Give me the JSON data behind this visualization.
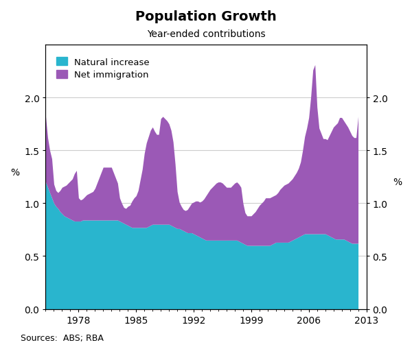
{
  "title": "Population Growth",
  "subtitle": "Year-ended contributions",
  "source": "Sources:  ABS; RBA",
  "ylabel_left": "%",
  "ylabel_right": "%",
  "ylim": [
    0.0,
    2.5
  ],
  "yticks": [
    0.0,
    0.5,
    1.0,
    1.5,
    2.0
  ],
  "xtick_years": [
    1978,
    1985,
    1992,
    1999,
    2006,
    2013
  ],
  "color_natural": "#29B5CE",
  "color_immigration": "#9B59B6",
  "legend_labels": [
    "Natural increase",
    "Net immigration"
  ],
  "years": [
    1974.0,
    1974.25,
    1974.5,
    1974.75,
    1975.0,
    1975.25,
    1975.5,
    1975.75,
    1976.0,
    1976.25,
    1976.5,
    1976.75,
    1977.0,
    1977.25,
    1977.5,
    1977.75,
    1978.0,
    1978.25,
    1978.5,
    1978.75,
    1979.0,
    1979.25,
    1979.5,
    1979.75,
    1980.0,
    1980.25,
    1980.5,
    1980.75,
    1981.0,
    1981.25,
    1981.5,
    1981.75,
    1982.0,
    1982.25,
    1982.5,
    1982.75,
    1983.0,
    1983.25,
    1983.5,
    1983.75,
    1984.0,
    1984.25,
    1984.5,
    1984.75,
    1985.0,
    1985.25,
    1985.5,
    1985.75,
    1986.0,
    1986.25,
    1986.5,
    1986.75,
    1987.0,
    1987.25,
    1987.5,
    1987.75,
    1988.0,
    1988.25,
    1988.5,
    1988.75,
    1989.0,
    1989.25,
    1989.5,
    1989.75,
    1990.0,
    1990.25,
    1990.5,
    1990.75,
    1991.0,
    1991.25,
    1991.5,
    1991.75,
    1992.0,
    1992.25,
    1992.5,
    1992.75,
    1993.0,
    1993.25,
    1993.5,
    1993.75,
    1994.0,
    1994.25,
    1994.5,
    1994.75,
    1995.0,
    1995.25,
    1995.5,
    1995.75,
    1996.0,
    1996.25,
    1996.5,
    1996.75,
    1997.0,
    1997.25,
    1997.5,
    1997.75,
    1998.0,
    1998.25,
    1998.5,
    1998.75,
    1999.0,
    1999.25,
    1999.5,
    1999.75,
    2000.0,
    2000.25,
    2000.5,
    2000.75,
    2001.0,
    2001.25,
    2001.5,
    2001.75,
    2002.0,
    2002.25,
    2002.5,
    2002.75,
    2003.0,
    2003.25,
    2003.5,
    2003.75,
    2004.0,
    2004.25,
    2004.5,
    2004.75,
    2005.0,
    2005.25,
    2005.5,
    2005.75,
    2006.0,
    2006.25,
    2006.5,
    2006.75,
    2007.0,
    2007.25,
    2007.5,
    2007.75,
    2008.0,
    2008.25,
    2008.5,
    2008.75,
    2009.0,
    2009.25,
    2009.5,
    2009.75,
    2010.0,
    2010.25,
    2010.5,
    2010.75,
    2011.0,
    2011.25,
    2011.5,
    2011.75,
    2012.0,
    2012.25,
    2012.5,
    2012.75,
    2013.0
  ],
  "natural_increase": [
    1.2,
    1.15,
    1.1,
    1.05,
    1.0,
    0.97,
    0.95,
    0.92,
    0.9,
    0.88,
    0.87,
    0.86,
    0.85,
    0.84,
    0.83,
    0.83,
    0.83,
    0.83,
    0.84,
    0.84,
    0.84,
    0.84,
    0.84,
    0.84,
    0.84,
    0.84,
    0.84,
    0.84,
    0.84,
    0.84,
    0.84,
    0.84,
    0.84,
    0.84,
    0.84,
    0.84,
    0.83,
    0.82,
    0.81,
    0.8,
    0.79,
    0.78,
    0.77,
    0.77,
    0.77,
    0.77,
    0.77,
    0.77,
    0.77,
    0.77,
    0.78,
    0.79,
    0.8,
    0.8,
    0.8,
    0.8,
    0.8,
    0.8,
    0.8,
    0.8,
    0.8,
    0.79,
    0.78,
    0.77,
    0.76,
    0.76,
    0.75,
    0.74,
    0.73,
    0.72,
    0.72,
    0.72,
    0.71,
    0.7,
    0.69,
    0.68,
    0.67,
    0.66,
    0.65,
    0.65,
    0.65,
    0.65,
    0.65,
    0.65,
    0.65,
    0.65,
    0.65,
    0.65,
    0.65,
    0.65,
    0.65,
    0.65,
    0.65,
    0.65,
    0.64,
    0.63,
    0.62,
    0.61,
    0.6,
    0.6,
    0.6,
    0.6,
    0.6,
    0.6,
    0.6,
    0.6,
    0.6,
    0.6,
    0.6,
    0.6,
    0.61,
    0.62,
    0.63,
    0.63,
    0.63,
    0.63,
    0.63,
    0.63,
    0.63,
    0.64,
    0.65,
    0.66,
    0.67,
    0.68,
    0.69,
    0.7,
    0.71,
    0.71,
    0.71,
    0.71,
    0.71,
    0.71,
    0.71,
    0.71,
    0.71,
    0.71,
    0.71,
    0.7,
    0.69,
    0.68,
    0.67,
    0.66,
    0.66,
    0.66,
    0.66,
    0.66,
    0.65,
    0.64,
    0.63,
    0.62,
    0.62,
    0.62,
    0.62,
    0.62,
    0.62,
    0.62,
    0.62
  ],
  "net_immigration": [
    0.62,
    0.47,
    0.4,
    0.37,
    0.18,
    0.15,
    0.15,
    0.2,
    0.25,
    0.28,
    0.3,
    0.33,
    0.36,
    0.39,
    0.45,
    0.48,
    0.22,
    0.2,
    0.2,
    0.22,
    0.24,
    0.25,
    0.26,
    0.27,
    0.3,
    0.35,
    0.4,
    0.45,
    0.5,
    0.5,
    0.5,
    0.5,
    0.5,
    0.45,
    0.4,
    0.35,
    0.22,
    0.18,
    0.15,
    0.15,
    0.18,
    0.2,
    0.25,
    0.28,
    0.3,
    0.35,
    0.45,
    0.55,
    0.7,
    0.8,
    0.85,
    0.9,
    0.92,
    0.88,
    0.85,
    0.85,
    1.0,
    1.02,
    1.0,
    0.98,
    0.95,
    0.9,
    0.8,
    0.6,
    0.35,
    0.25,
    0.22,
    0.2,
    0.2,
    0.22,
    0.25,
    0.28,
    0.3,
    0.32,
    0.33,
    0.33,
    0.35,
    0.38,
    0.42,
    0.45,
    0.48,
    0.5,
    0.52,
    0.54,
    0.55,
    0.55,
    0.54,
    0.52,
    0.5,
    0.5,
    0.5,
    0.52,
    0.54,
    0.55,
    0.54,
    0.52,
    0.38,
    0.3,
    0.28,
    0.28,
    0.28,
    0.3,
    0.32,
    0.35,
    0.38,
    0.4,
    0.42,
    0.45,
    0.45,
    0.45,
    0.45,
    0.45,
    0.45,
    0.47,
    0.5,
    0.52,
    0.54,
    0.55,
    0.56,
    0.57,
    0.58,
    0.6,
    0.62,
    0.65,
    0.7,
    0.8,
    0.92,
    1.0,
    1.1,
    1.3,
    1.55,
    1.6,
    1.2,
    1.0,
    0.95,
    0.9,
    0.9,
    0.9,
    0.95,
    1.0,
    1.05,
    1.08,
    1.1,
    1.15,
    1.15,
    1.12,
    1.1,
    1.08,
    1.05,
    1.02,
    1.0,
    1.0,
    1.2
  ]
}
